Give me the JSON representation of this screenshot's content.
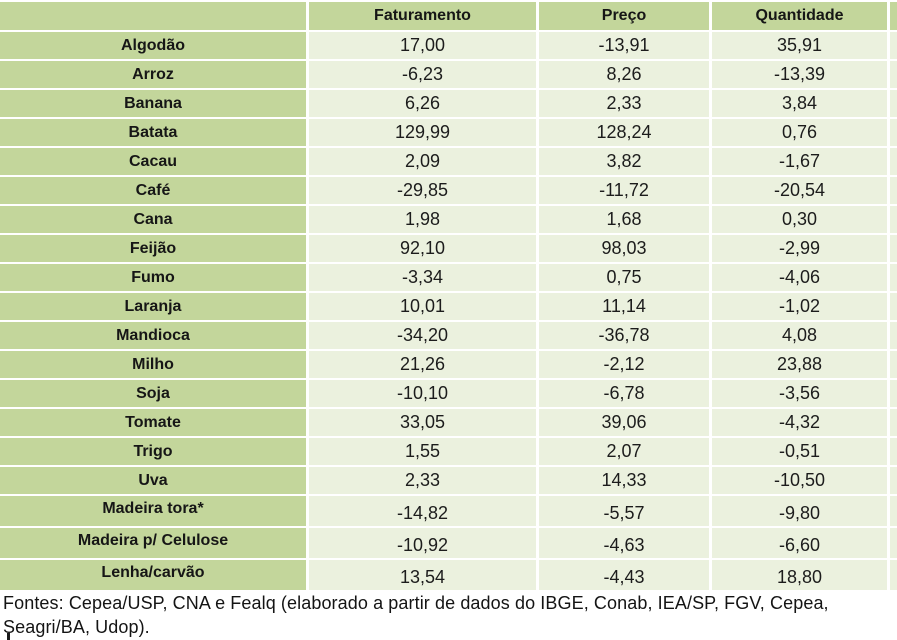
{
  "table": {
    "corner": "",
    "headers": [
      "Faturamento",
      "Preço",
      "Quantidade"
    ],
    "rows": [
      {
        "label": "Algodão",
        "values": [
          "17,00",
          "-13,91",
          "35,91"
        ]
      },
      {
        "label": "Arroz",
        "values": [
          "-6,23",
          "8,26",
          "-13,39"
        ]
      },
      {
        "label": "Banana",
        "values": [
          "6,26",
          "2,33",
          "3,84"
        ]
      },
      {
        "label": "Batata",
        "values": [
          "129,99",
          "128,24",
          "0,76"
        ]
      },
      {
        "label": "Cacau",
        "values": [
          "2,09",
          "3,82",
          "-1,67"
        ]
      },
      {
        "label": "Café",
        "values": [
          "-29,85",
          "-11,72",
          "-20,54"
        ]
      },
      {
        "label": "Cana",
        "values": [
          "1,98",
          "1,68",
          "0,30"
        ]
      },
      {
        "label": "Feijão",
        "values": [
          "92,10",
          "98,03",
          "-2,99"
        ]
      },
      {
        "label": "Fumo",
        "values": [
          "-3,34",
          "0,75",
          "-4,06"
        ]
      },
      {
        "label": "Laranja",
        "values": [
          "10,01",
          "11,14",
          "-1,02"
        ]
      },
      {
        "label": "Mandioca",
        "values": [
          "-34,20",
          "-36,78",
          "4,08"
        ]
      },
      {
        "label": "Milho",
        "values": [
          "21,26",
          "-2,12",
          "23,88"
        ]
      },
      {
        "label": "Soja",
        "values": [
          "-10,10",
          "-6,78",
          "-3,56"
        ]
      },
      {
        "label": "Tomate",
        "values": [
          "33,05",
          "39,06",
          "-4,32"
        ]
      },
      {
        "label": "Trigo",
        "values": [
          "1,55",
          "2,07",
          "-0,51"
        ]
      },
      {
        "label": "Uva",
        "values": [
          "2,33",
          "14,33",
          "-10,50"
        ]
      },
      {
        "label": "Madeira tora*",
        "values": [
          "-14,82",
          "-5,57",
          "-9,80"
        ]
      },
      {
        "label": "Madeira p/ Celulose",
        "values": [
          "-10,92",
          "-4,63",
          "-6,60"
        ]
      },
      {
        "label": "Lenha/carvão",
        "values": [
          "13,54",
          "-4,43",
          "18,80"
        ]
      }
    ]
  },
  "footer": {
    "line1": "Fontes: Cepea/USP, CNA e Fealq (elaborado a partir de dados do IBGE, Conab, IEA/SP, FGV, Cepea,",
    "line2": "Seagri/BA, Udop)."
  },
  "colors": {
    "header_green": "#c3d69b",
    "cell_light": "#ebf1de",
    "gridline": "#ffffff",
    "text": "#1a1a1a"
  }
}
